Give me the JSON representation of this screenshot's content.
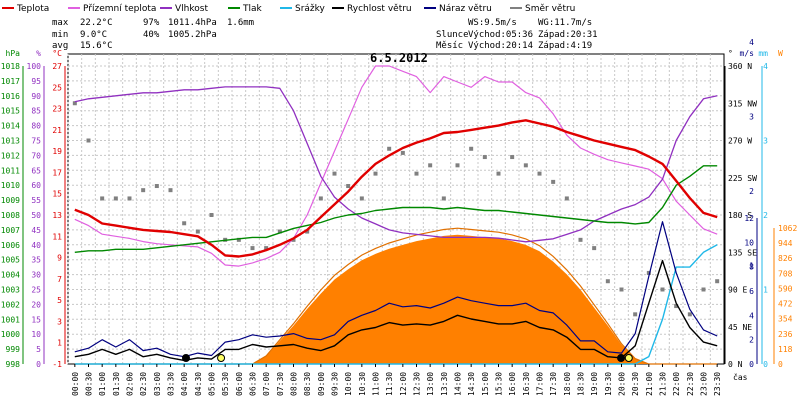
{
  "chart_data": {
    "type": "line",
    "title": "6.5.2012",
    "xlabel": "čas",
    "legend": {
      "placement": "top",
      "items": [
        {
          "name": "Teplota",
          "color": "#e00000"
        },
        {
          "name": "Přízemní teplota",
          "color": "#e060e0"
        },
        {
          "name": "Vlhkost",
          "color": "#9030c0"
        },
        {
          "name": "Tlak",
          "color": "#008800"
        },
        {
          "name": "Srážky",
          "color": "#20b8e8"
        },
        {
          "name": "Rychlost větru",
          "color": "#000000"
        },
        {
          "name": "Náraz větru",
          "color": "#000080"
        },
        {
          "name": "Směr větru",
          "color": "#808080"
        }
      ]
    },
    "stats": {
      "max": {
        "label": "max",
        "temp": "22.2°C",
        "hum": "97%",
        "press": "1011.4hPa",
        "rain": "1.6mm"
      },
      "min": {
        "label": "min",
        "temp": "9.0°C",
        "hum": "40%",
        "press": "1005.2hPa"
      },
      "avg": {
        "label": "avg",
        "temp": "15.6°C"
      }
    },
    "wind_info": {
      "ws": "WS:9.5m/s",
      "wg": "WG:11.7m/s"
    },
    "sun_info": {
      "label": "Slunce",
      "rise": "Východ:05:36",
      "set": "Západ:20:31"
    },
    "moon_info": {
      "label": "Měsíc",
      "rise": "Východ:20:14",
      "set": "Západ:4:19"
    },
    "axes": {
      "hpa": {
        "unit": "hPa",
        "color": "#008800",
        "ticks": [
          "998",
          "999",
          "1000",
          "1001",
          "1002",
          "1003",
          "1004",
          "1005",
          "1006",
          "1007",
          "1008",
          "1009",
          "1010",
          "1011",
          "1012",
          "1013",
          "1014",
          "1015",
          "1016",
          "1017",
          "1018"
        ]
      },
      "pct": {
        "unit": "%",
        "color": "#9030c0",
        "ticks": [
          "0",
          "5",
          "10",
          "15",
          "20",
          "25",
          "30",
          "35",
          "40",
          "45",
          "50",
          "55",
          "60",
          "65",
          "70",
          "75",
          "80",
          "85",
          "90",
          "95",
          "100"
        ]
      },
      "temp": {
        "unit": "°C",
        "color": "#e00000",
        "ticks": [
          "-1",
          "1",
          "3",
          "5",
          "7",
          "9",
          "11",
          "13",
          "15",
          "17",
          "19",
          "21",
          "23",
          "25",
          "27"
        ]
      },
      "dir": {
        "unit": "°",
        "color": "#000000",
        "ticks": [
          "0 N",
          "45 NE",
          "90 E",
          "135 SE",
          "180 S",
          "225 SW",
          "270 W",
          "315 NW",
          "360 N"
        ]
      },
      "ms": {
        "unit": "m/s",
        "color": "#000080",
        "ticks": [
          "0",
          "2",
          "4",
          "6",
          "8",
          "10",
          "12"
        ],
        "upper_ticks": [
          "1",
          "2",
          "3",
          "4"
        ]
      },
      "mm": {
        "unit": "mm",
        "color": "#20b8e8",
        "ticks": [
          "0",
          "1",
          "2",
          "3",
          "4"
        ]
      },
      "w": {
        "unit": "W",
        "color": "#ff8000",
        "ticks": [
          "0",
          "118",
          "236",
          "354",
          "472",
          "590",
          "708",
          "826",
          "944",
          "1062"
        ]
      }
    },
    "x": [
      "00:00",
      "00:30",
      "01:00",
      "01:30",
      "02:00",
      "02:30",
      "03:00",
      "03:30",
      "04:00",
      "04:30",
      "05:00",
      "05:30",
      "06:00",
      "06:30",
      "07:00",
      "07:30",
      "08:00",
      "08:30",
      "09:00",
      "09:30",
      "10:00",
      "10:30",
      "11:00",
      "11:30",
      "12:00",
      "12:30",
      "13:00",
      "13:30",
      "14:00",
      "14:30",
      "15:00",
      "15:30",
      "16:00",
      "16:30",
      "17:00",
      "17:30",
      "18:00",
      "18:30",
      "19:00",
      "19:30",
      "20:00",
      "20:30",
      "21:00",
      "21:30",
      "22:00",
      "22:30",
      "23:00",
      "23:30"
    ],
    "series": [
      {
        "name": "Teplota",
        "unit": "°C",
        "values": [
          13.5,
          13,
          12.2,
          12,
          11.8,
          11.6,
          11.5,
          11.4,
          11.2,
          11,
          10.2,
          9.2,
          9.1,
          9.3,
          9.7,
          10.2,
          10.8,
          11.6,
          12.8,
          14,
          15.2,
          16.6,
          17.8,
          18.6,
          19.3,
          19.8,
          20.2,
          20.7,
          20.8,
          21,
          21.2,
          21.4,
          21.7,
          21.9,
          21.6,
          21.3,
          20.8,
          20.4,
          20,
          19.7,
          19.4,
          19.1,
          18.5,
          17.8,
          16.2,
          14.6,
          13.2,
          12.8
        ]
      },
      {
        "name": "Přízemní teplota",
        "unit": "°C",
        "values": [
          12.6,
          12,
          11.2,
          11,
          10.8,
          10.5,
          10.3,
          10.2,
          10.1,
          10,
          9.4,
          8.3,
          8.2,
          8.5,
          8.9,
          9.5,
          10.8,
          13,
          16,
          19,
          22,
          25,
          27,
          27,
          26.5,
          26,
          24.5,
          26,
          25.5,
          25,
          26,
          25.5,
          25.5,
          24.5,
          24,
          22.5,
          20.5,
          19.3,
          18.7,
          18.2,
          17.9,
          17.6,
          17.3,
          16.4,
          14.3,
          13,
          11.7,
          11.2
        ]
      },
      {
        "name": "Vlhkost",
        "unit": "%",
        "values": [
          88,
          89,
          89.5,
          90,
          90.5,
          91,
          91,
          91.5,
          92,
          92,
          92.5,
          93,
          93,
          93,
          93,
          92.5,
          85,
          74,
          63,
          56,
          52,
          49,
          47,
          45,
          44,
          43.5,
          43,
          42.5,
          42.5,
          42.5,
          42.5,
          42.2,
          41.6,
          41,
          41.5,
          42,
          43.5,
          45,
          48,
          50,
          52,
          53.5,
          56,
          62,
          75,
          83,
          89,
          90
        ]
      },
      {
        "name": "Tlak",
        "unit": "hPa",
        "values": [
          1005.5,
          1005.6,
          1005.6,
          1005.7,
          1005.7,
          1005.7,
          1005.8,
          1005.9,
          1006,
          1006.1,
          1006.2,
          1006.3,
          1006.4,
          1006.5,
          1006.5,
          1006.8,
          1007.1,
          1007.3,
          1007.5,
          1007.8,
          1008,
          1008.1,
          1008.3,
          1008.4,
          1008.5,
          1008.5,
          1008.5,
          1008.4,
          1008.5,
          1008.4,
          1008.3,
          1008.3,
          1008.2,
          1008.1,
          1008,
          1007.9,
          1007.8,
          1007.7,
          1007.6,
          1007.5,
          1007.5,
          1007.4,
          1007.5,
          1008.5,
          1010,
          1010.6,
          1011.3,
          1011.3
        ]
      },
      {
        "name": "Srážky",
        "unit": "mm",
        "values": [
          0,
          0,
          0,
          0,
          0,
          0,
          0,
          0,
          0,
          0,
          0,
          0,
          0,
          0,
          0,
          0,
          0,
          0,
          0,
          0,
          0,
          0,
          0,
          0,
          0,
          0,
          0,
          0,
          0,
          0,
          0,
          0,
          0,
          0,
          0,
          0,
          0,
          0,
          0,
          0,
          0,
          0,
          0.1,
          0.6,
          1.3,
          1.3,
          1.5,
          1.6
        ]
      },
      {
        "name": "Rychlost větru",
        "unit": "m/s",
        "values": [
          0.6,
          0.8,
          1.2,
          0.8,
          1.2,
          0.6,
          0.8,
          0.5,
          0.3,
          0.5,
          0.4,
          1.2,
          1.2,
          1.6,
          1.4,
          1.5,
          1.6,
          1.3,
          1.1,
          1.5,
          2.4,
          2.8,
          3,
          3.4,
          3.2,
          3.3,
          3.2,
          3.5,
          4,
          3.7,
          3.5,
          3.3,
          3.3,
          3.5,
          3,
          2.8,
          2.2,
          1.2,
          1.2,
          0.6,
          0.5,
          1.5,
          5,
          8.5,
          5,
          3,
          1.8,
          1.5
        ]
      },
      {
        "name": "Náraz větru",
        "unit": "m/s",
        "values": [
          1,
          1.3,
          2,
          1.4,
          2,
          1.1,
          1.3,
          0.8,
          0.6,
          0.9,
          0.7,
          1.8,
          2,
          2.4,
          2.2,
          2.3,
          2.5,
          2.1,
          2,
          2.4,
          3.5,
          4,
          4.4,
          5,
          4.7,
          4.8,
          4.6,
          5,
          5.5,
          5.2,
          5,
          4.8,
          4.8,
          5,
          4.4,
          4.2,
          3.2,
          1.9,
          1.9,
          1,
          0.9,
          2.5,
          7.2,
          11.7,
          7.5,
          4.5,
          2.8,
          2.3
        ]
      },
      {
        "name": "Směr větru",
        "unit": "°",
        "values": [
          315,
          270,
          200,
          200,
          200,
          210,
          215,
          210,
          170,
          160,
          180,
          150,
          150,
          140,
          140,
          160,
          150,
          160,
          200,
          230,
          215,
          200,
          230,
          260,
          255,
          230,
          240,
          200,
          240,
          260,
          250,
          230,
          250,
          240,
          230,
          220,
          200,
          150,
          140,
          100,
          90,
          60,
          110,
          90,
          70,
          60,
          90,
          100
        ]
      },
      {
        "name": "Solar",
        "unit": "W",
        "values": [
          0,
          0,
          0,
          0,
          0,
          0,
          0,
          0,
          0,
          0,
          0,
          0,
          0,
          0,
          60,
          180,
          300,
          430,
          550,
          660,
          740,
          810,
          860,
          900,
          930,
          960,
          980,
          1000,
          1010,
          1000,
          990,
          980,
          960,
          930,
          880,
          800,
          700,
          580,
          440,
          300,
          150,
          40,
          0,
          0,
          0,
          0,
          0,
          0
        ]
      }
    ],
    "markers": [
      {
        "type": "sunrise",
        "time": "05:36"
      },
      {
        "type": "moonset",
        "time": "04:19"
      },
      {
        "type": "moonrise",
        "time": "20:14"
      },
      {
        "type": "sunset",
        "time": "20:31"
      }
    ]
  }
}
